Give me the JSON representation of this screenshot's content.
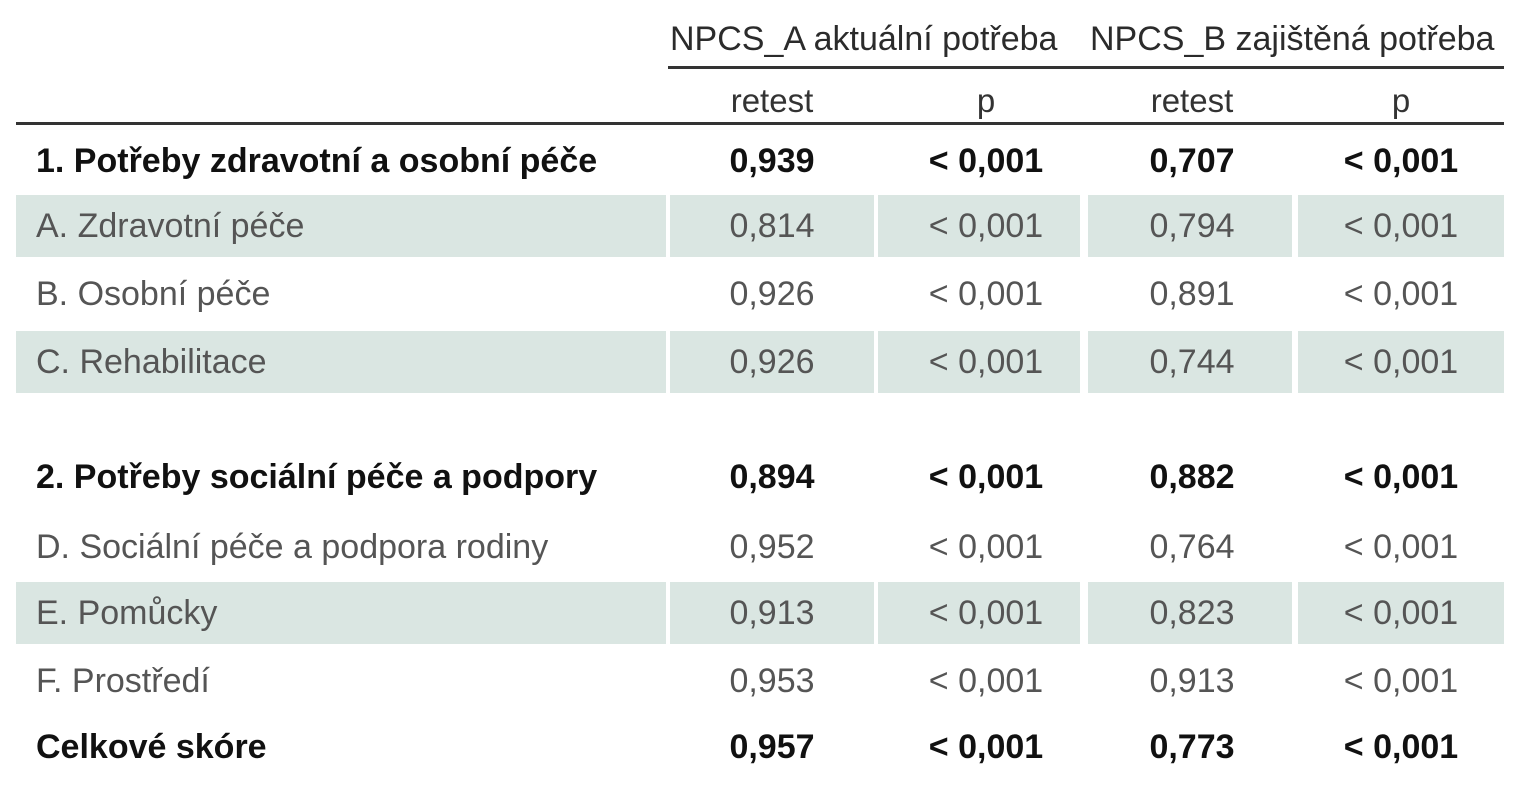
{
  "header": {
    "group_a": "NPCS_A aktuální potřeba",
    "group_b": "NPCS_B zajištěná potřeba",
    "col_retest": "retest",
    "col_p": "p"
  },
  "rows": [
    {
      "label": "1. Potřeby zdravotní a osobní péče",
      "a_retest": "0,939",
      "a_p": "< 0,001",
      "b_retest": "0,707",
      "b_p": "< 0,001"
    },
    {
      "label": "A. Zdravotní péče",
      "a_retest": "0,814",
      "a_p": "< 0,001",
      "b_retest": "0,794",
      "b_p": "< 0,001"
    },
    {
      "label": "B. Osobní péče",
      "a_retest": "0,926",
      "a_p": "< 0,001",
      "b_retest": "0,891",
      "b_p": "< 0,001"
    },
    {
      "label": "C. Rehabilitace",
      "a_retest": "0,926",
      "a_p": "< 0,001",
      "b_retest": "0,744",
      "b_p": "< 0,001"
    },
    {
      "label": "2. Potřeby sociální péče a podpory",
      "a_retest": "0,894",
      "a_p": "< 0,001",
      "b_retest": "0,882",
      "b_p": "< 0,001"
    },
    {
      "label": "D. Sociální péče a podpora rodiny",
      "a_retest": "0,952",
      "a_p": "< 0,001",
      "b_retest": "0,764",
      "b_p": "< 0,001"
    },
    {
      "label": "E. Pomůcky",
      "a_retest": "0,913",
      "a_p": "< 0,001",
      "b_retest": "0,823",
      "b_p": "< 0,001"
    },
    {
      "label": "F. Prostředí",
      "a_retest": "0,953",
      "a_p": "< 0,001",
      "b_retest": "0,913",
      "b_p": "< 0,001"
    },
    {
      "label": "Celkové skóre",
      "a_retest": "0,957",
      "a_p": "< 0,001",
      "b_retest": "0,773",
      "b_p": "< 0,001"
    }
  ]
}
